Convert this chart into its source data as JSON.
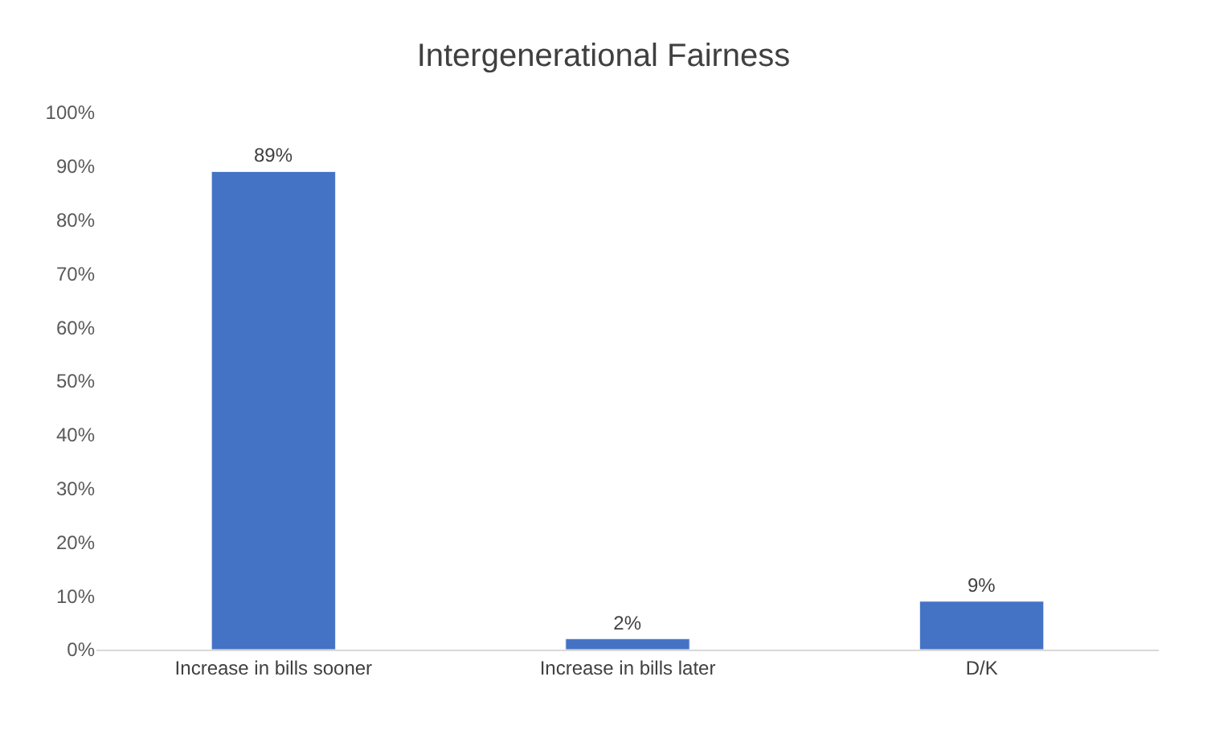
{
  "chart_data": {
    "type": "bar",
    "title": "Intergenerational Fairness",
    "categories": [
      "Increase in bills sooner",
      "Increase in bills later",
      "D/K"
    ],
    "values": [
      89,
      2,
      9
    ],
    "value_labels": [
      "89%",
      "2%",
      "9%"
    ],
    "color": "#4472c4",
    "ylim": [
      0,
      100
    ],
    "yticks": [
      {
        "value": 0,
        "label": "0%"
      },
      {
        "value": 10,
        "label": "10%"
      },
      {
        "value": 20,
        "label": "20%"
      },
      {
        "value": 30,
        "label": "30%"
      },
      {
        "value": 40,
        "label": "40%"
      },
      {
        "value": 50,
        "label": "50%"
      },
      {
        "value": 60,
        "label": "60%"
      },
      {
        "value": 70,
        "label": "70%"
      },
      {
        "value": 80,
        "label": "80%"
      },
      {
        "value": 90,
        "label": "90%"
      },
      {
        "value": 100,
        "label": "100%"
      }
    ],
    "grid": false
  }
}
